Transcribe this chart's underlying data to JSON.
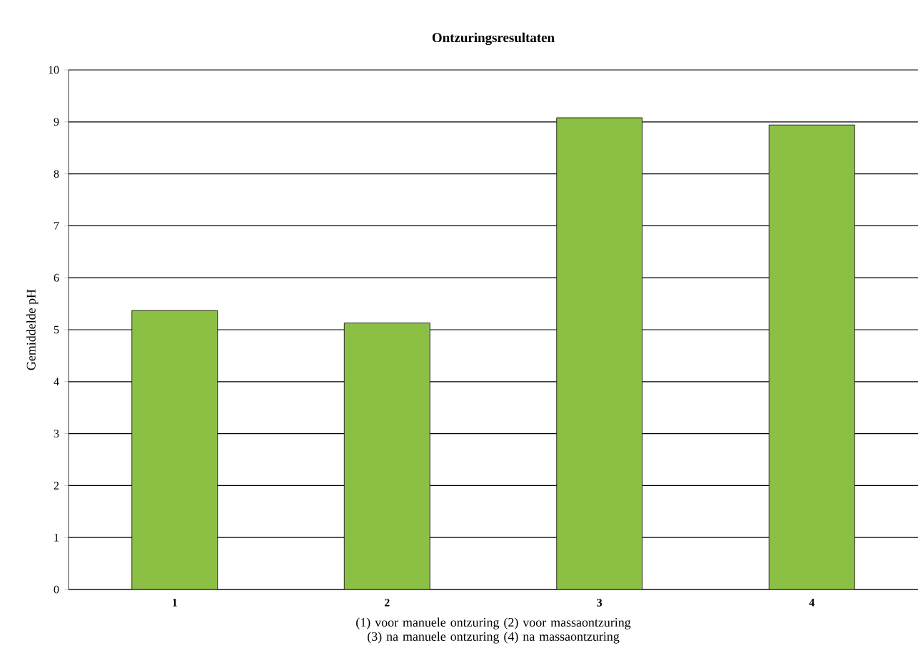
{
  "chart_data": {
    "type": "bar",
    "title": "Ontzuringsresultaten",
    "xlabel": "(1) voor manuele ontzuring (2) voor massaontzuring (3) na manuele ontzuring (4) na massaontzuring",
    "ylabel": "Gemiddelde pH",
    "categories": [
      "1",
      "2",
      "3",
      "4"
    ],
    "values": [
      5.37,
      5.13,
      9.08,
      8.94
    ],
    "color": "#8bc045",
    "ylim": [
      0,
      10
    ],
    "yticks": [
      0,
      1,
      2,
      3,
      4,
      5,
      6,
      7,
      8,
      9,
      10
    ],
    "grid": "y"
  }
}
